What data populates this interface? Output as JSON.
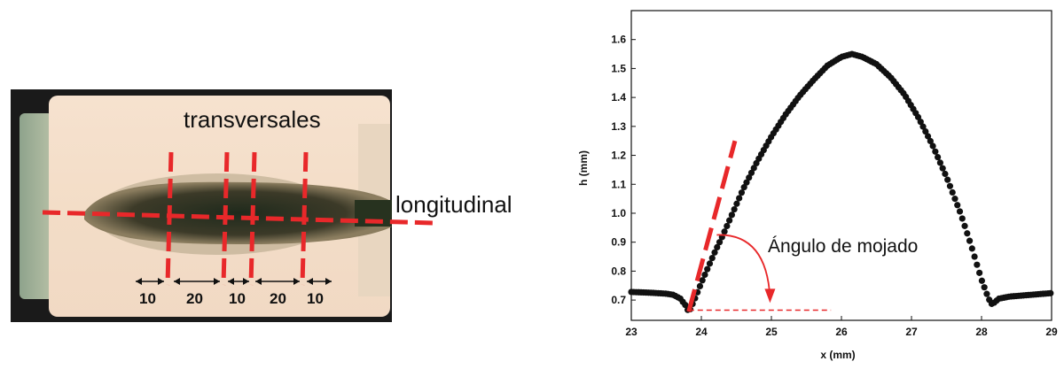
{
  "photo": {
    "label_transversal": "transversales",
    "label_longitudinal": "longitudinal",
    "spacings": [
      "10",
      "20",
      "10",
      "20",
      "10"
    ],
    "line_color": "#e8282a"
  },
  "chart_data": {
    "type": "scatter",
    "title": "",
    "xlabel": "x (mm)",
    "ylabel": "h (mm)",
    "xlim": [
      23,
      29
    ],
    "ylim": [
      0.63,
      1.7
    ],
    "xticks": [
      "23",
      "24",
      "25",
      "26",
      "27",
      "28",
      "29"
    ],
    "yticks": [
      "0.7",
      "0.8",
      "0.9",
      "1.0",
      "1.1",
      "1.2",
      "1.3",
      "1.4",
      "1.5",
      "1.6"
    ],
    "annotation": "Ángulo de mojado",
    "annotation_color": "#e8282a",
    "marker_color": "#111111",
    "profile_knots": [
      [
        23.0,
        0.728
      ],
      [
        23.3,
        0.725
      ],
      [
        23.5,
        0.722
      ],
      [
        23.6,
        0.718
      ],
      [
        23.7,
        0.705
      ],
      [
        23.78,
        0.68
      ],
      [
        23.82,
        0.658
      ],
      [
        23.9,
        0.7
      ],
      [
        24.0,
        0.76
      ],
      [
        24.1,
        0.815
      ],
      [
        24.2,
        0.87
      ],
      [
        24.3,
        0.92
      ],
      [
        24.4,
        0.975
      ],
      [
        24.6,
        1.085
      ],
      [
        24.8,
        1.18
      ],
      [
        25.0,
        1.265
      ],
      [
        25.2,
        1.34
      ],
      [
        25.4,
        1.405
      ],
      [
        25.6,
        1.46
      ],
      [
        25.8,
        1.51
      ],
      [
        26.0,
        1.54
      ],
      [
        26.15,
        1.55
      ],
      [
        26.3,
        1.54
      ],
      [
        26.5,
        1.515
      ],
      [
        26.7,
        1.47
      ],
      [
        26.9,
        1.41
      ],
      [
        27.1,
        1.33
      ],
      [
        27.3,
        1.235
      ],
      [
        27.5,
        1.125
      ],
      [
        27.7,
        1.0
      ],
      [
        27.85,
        0.89
      ],
      [
        28.0,
        0.77
      ],
      [
        28.1,
        0.705
      ],
      [
        28.15,
        0.685
      ],
      [
        28.25,
        0.705
      ],
      [
        28.4,
        0.712
      ],
      [
        28.6,
        0.716
      ],
      [
        28.8,
        0.72
      ],
      [
        29.0,
        0.724
      ]
    ],
    "tangent_line": [
      [
        23.82,
        0.66
      ],
      [
        24.48,
        1.25
      ]
    ],
    "baseline": [
      [
        23.82,
        0.665
      ],
      [
        25.85,
        0.665
      ]
    ]
  }
}
